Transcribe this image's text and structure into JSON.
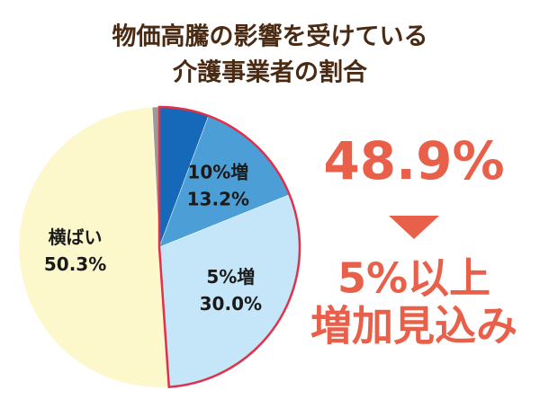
{
  "chart_data": {
    "type": "pie",
    "title": [
      "物価高騰の影響を受けている",
      "介護事業者の割合"
    ],
    "categories": [
      null,
      "10%増",
      "5%増",
      "横ばい",
      null
    ],
    "values": [
      5.7,
      13.2,
      30.0,
      50.3,
      0.8
    ],
    "value_labels": [
      null,
      "13.2%",
      "30.0%",
      "50.3%",
      null
    ],
    "colors": [
      "#1668b8",
      "#4b9fd6",
      "#c4e6f8",
      "#fdf7cc",
      "#9a9a9a"
    ],
    "annotations": [
      "48.9%",
      "5%以上",
      "増加見込み"
    ]
  }
}
